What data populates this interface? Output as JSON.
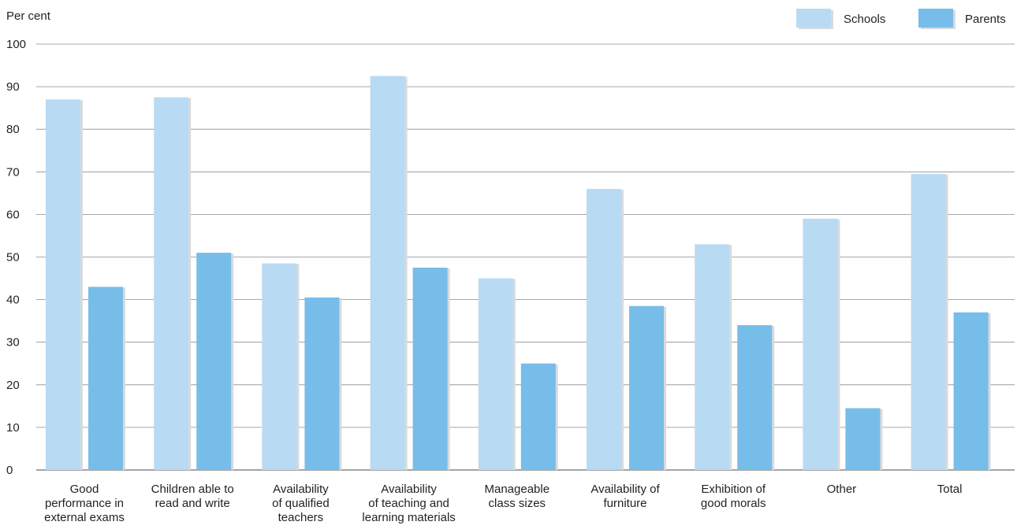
{
  "chart_data": {
    "type": "bar",
    "ylabel": "Per cent",
    "ylim": [
      0,
      100
    ],
    "yticks": [
      0,
      10,
      20,
      30,
      40,
      50,
      60,
      70,
      80,
      90,
      100
    ],
    "grid": true,
    "legend_position": "top-right",
    "categories": [
      [
        "Good",
        "performance in",
        "external exams"
      ],
      [
        "Children able to",
        "read and write"
      ],
      [
        "Availability",
        "of qualified",
        "teachers"
      ],
      [
        "Availability",
        "of teaching and",
        "learning materials"
      ],
      [
        "Manageable",
        "class sizes"
      ],
      [
        "Availability of",
        "furniture"
      ],
      [
        "Exhibition of",
        "good morals"
      ],
      [
        "Other"
      ],
      [
        "Total"
      ]
    ],
    "series": [
      {
        "name": "Schools",
        "color": "#b9daf3",
        "values": [
          87,
          87.5,
          48.5,
          92.5,
          45,
          66,
          53,
          59,
          69.5
        ]
      },
      {
        "name": "Parents",
        "color": "#77bde9",
        "values": [
          43,
          51,
          40.5,
          47.5,
          25,
          38.5,
          34,
          14.5,
          37
        ]
      }
    ]
  }
}
